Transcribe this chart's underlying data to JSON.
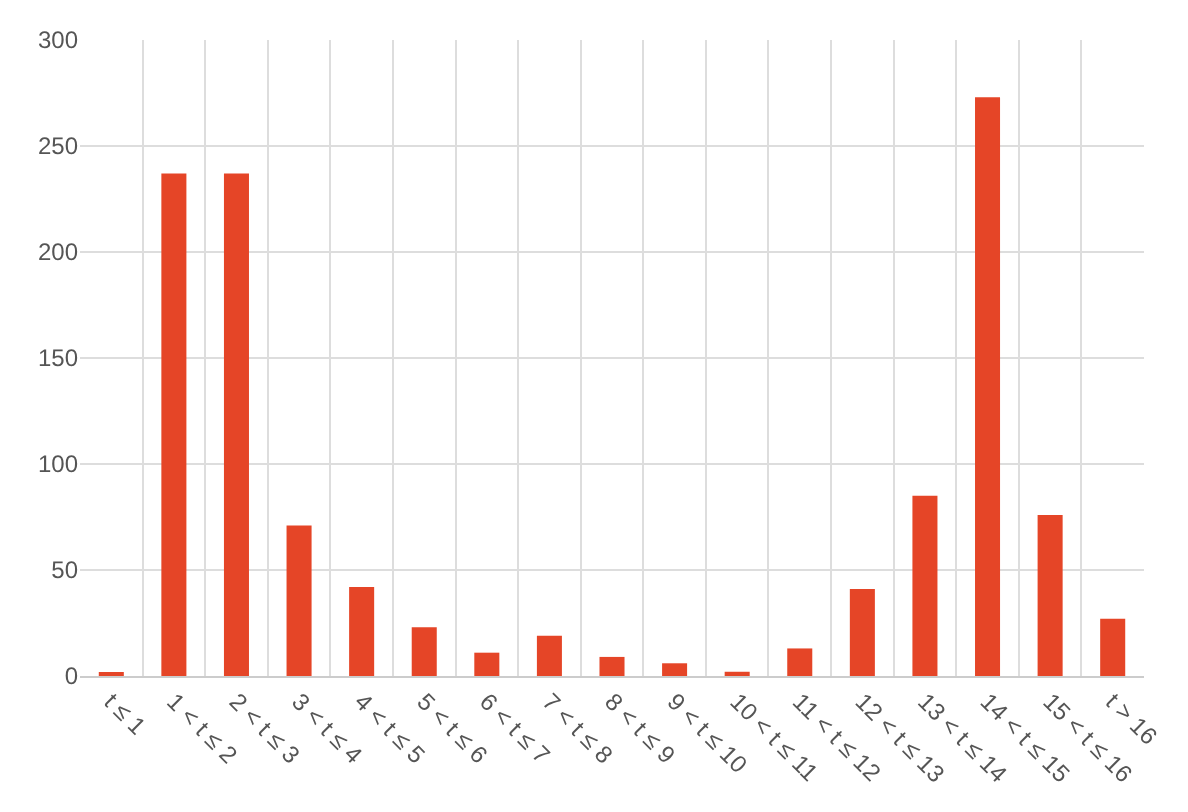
{
  "chart_data": {
    "type": "bar",
    "categories": [
      "t ≤ 1",
      "1 < t ≤ 2",
      "2 < t ≤ 3",
      "3 < t ≤ 4",
      "4 < t ≤ 5",
      "5 < t ≤ 6",
      "6 < t ≤ 7",
      "7 < t ≤ 8",
      "8 < t ≤ 9",
      "9 < t ≤ 10",
      "10 < t ≤ 11",
      "11 < t ≤ 12",
      "12 < t ≤ 13",
      "13 < t ≤ 14",
      "14 < t ≤ 15",
      "15 < t ≤ 16",
      "t > 16"
    ],
    "values": [
      1,
      237,
      237,
      71,
      42,
      23,
      11,
      19,
      9,
      6,
      2,
      13,
      41,
      85,
      273,
      76,
      27
    ],
    "color": "#e54527",
    "ylim": [
      0,
      300
    ],
    "yticks": [
      0,
      50,
      100,
      150,
      200,
      250,
      300
    ],
    "grid": true,
    "legend": false
  }
}
